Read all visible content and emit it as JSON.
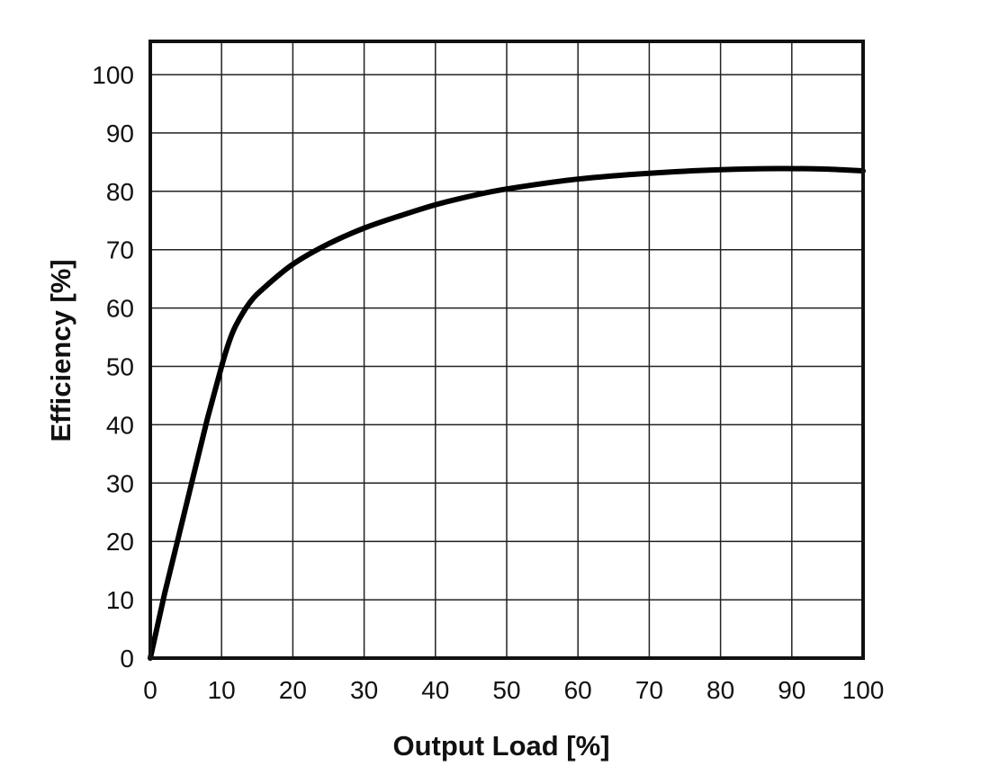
{
  "chart_data": {
    "type": "line",
    "title": "",
    "xlabel": "Output Load [%]",
    "ylabel": "Efficiency [%]",
    "xlim": [
      0,
      100
    ],
    "ylim": [
      0,
      105
    ],
    "xticks": [
      0,
      10,
      20,
      30,
      40,
      50,
      60,
      70,
      80,
      90,
      100
    ],
    "yticks": [
      0,
      10,
      20,
      30,
      40,
      50,
      60,
      70,
      80,
      90,
      100
    ],
    "grid": true,
    "legend": "none",
    "series": [
      {
        "color": "#000000",
        "x": [
          0,
          2,
          4,
          6,
          8,
          10,
          11,
          12,
          14,
          16,
          20,
          25,
          30,
          35,
          40,
          45,
          50,
          60,
          70,
          80,
          88,
          95,
          100
        ],
        "y": [
          0,
          11,
          21,
          31,
          41,
          50,
          54,
          57,
          61,
          63.5,
          67.5,
          71,
          73.7,
          75.8,
          77.7,
          79.2,
          80.4,
          82.1,
          83.1,
          83.7,
          83.9,
          83.8,
          83.5
        ]
      }
    ]
  }
}
